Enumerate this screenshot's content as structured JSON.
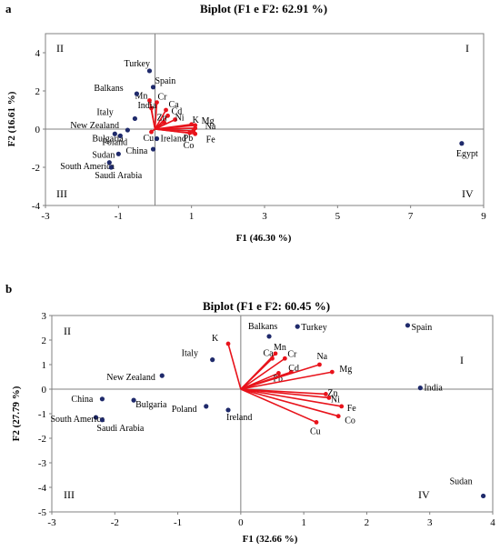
{
  "chart_data": [
    {
      "panel": "a",
      "type": "scatter",
      "title": "Biplot (F1 e F2: 62.91 %)",
      "xlabel": "F1 (46.30 %)",
      "ylabel": "F2 (16.61 %)",
      "xlim": [
        -3,
        9
      ],
      "ylim": [
        -4,
        5
      ],
      "xticks": [
        -3,
        -1,
        1,
        3,
        5,
        7,
        9
      ],
      "yticks": [
        -4,
        -2,
        0,
        2,
        4
      ],
      "quadrants": [
        "I",
        "II",
        "III",
        "IV"
      ],
      "observations": [
        {
          "name": "Turkey",
          "x": -0.15,
          "y": 3.05
        },
        {
          "name": "Spain",
          "x": -0.05,
          "y": 2.2
        },
        {
          "name": "Balkans",
          "x": -0.5,
          "y": 1.85
        },
        {
          "name": "Italy",
          "x": -0.55,
          "y": 0.55
        },
        {
          "name": "New Zealand",
          "x": -0.75,
          "y": -0.05
        },
        {
          "name": "Bulgaria",
          "x": -1.1,
          "y": -0.25
        },
        {
          "name": "Poland",
          "x": -0.95,
          "y": -0.35
        },
        {
          "name": "Sudan",
          "x": -1.0,
          "y": -1.3
        },
        {
          "name": "South America",
          "x": -1.25,
          "y": -1.75
        },
        {
          "name": "Saudi Arabia",
          "x": -1.2,
          "y": -2.0
        },
        {
          "name": "China",
          "x": -0.05,
          "y": -1.05
        },
        {
          "name": "Ireland",
          "x": 0.05,
          "y": -0.5
        },
        {
          "name": "Egypt",
          "x": 8.4,
          "y": -0.75
        }
      ],
      "variables": [
        {
          "name": "Mn",
          "x": -0.15,
          "y": 1.5
        },
        {
          "name": "Cr",
          "x": 0.05,
          "y": 1.4
        },
        {
          "name": "Ca",
          "x": 0.3,
          "y": 1.0
        },
        {
          "name": "India",
          "x": -0.1,
          "y": 1.1
        },
        {
          "name": "Cd",
          "x": 0.35,
          "y": 0.7
        },
        {
          "name": "Zn",
          "x": 0.25,
          "y": 0.35
        },
        {
          "name": "Ni",
          "x": 0.55,
          "y": 0.5
        },
        {
          "name": "K",
          "x": 1.0,
          "y": 0.25
        },
        {
          "name": "Mg",
          "x": 1.1,
          "y": 0.2
        },
        {
          "name": "Na",
          "x": 1.1,
          "y": 0.05
        },
        {
          "name": "Pb",
          "x": 1.05,
          "y": -0.1
        },
        {
          "name": "Fe",
          "x": 1.1,
          "y": -0.25
        },
        {
          "name": "Co",
          "x": 0.95,
          "y": -0.2
        },
        {
          "name": "Cu",
          "x": -0.1,
          "y": -0.15
        }
      ]
    },
    {
      "panel": "b",
      "type": "scatter",
      "title": "Biplot (F1 e F2: 60.45 %)",
      "xlabel": "F1 (32.66 %)",
      "ylabel": "F2 (27.79 %)",
      "xlim": [
        -3,
        4
      ],
      "ylim": [
        -5,
        3
      ],
      "xticks": [
        -3,
        -2,
        -1,
        0,
        1,
        2,
        3,
        4
      ],
      "yticks": [
        -5,
        -4,
        -3,
        -2,
        -1,
        0,
        1,
        2,
        3
      ],
      "quadrants": [
        "I",
        "II",
        "III",
        "IV"
      ],
      "observations": [
        {
          "name": "Balkans",
          "x": 0.45,
          "y": 2.15
        },
        {
          "name": "Turkey",
          "x": 0.9,
          "y": 2.55
        },
        {
          "name": "Spain",
          "x": 2.65,
          "y": 2.6
        },
        {
          "name": "Italy",
          "x": -0.45,
          "y": 1.2
        },
        {
          "name": "New Zealand",
          "x": -1.25,
          "y": 0.55
        },
        {
          "name": "India",
          "x": 2.85,
          "y": 0.05
        },
        {
          "name": "China",
          "x": -2.2,
          "y": -0.4
        },
        {
          "name": "Bulgaria",
          "x": -1.7,
          "y": -0.45
        },
        {
          "name": "Poland",
          "x": -0.55,
          "y": -0.7
        },
        {
          "name": "Ireland",
          "x": -0.2,
          "y": -0.85
        },
        {
          "name": "South America",
          "x": -2.3,
          "y": -1.15
        },
        {
          "name": "Saudi Arabia",
          "x": -2.2,
          "y": -1.25
        },
        {
          "name": "Sudan",
          "x": 3.85,
          "y": -4.35
        }
      ],
      "variables": [
        {
          "name": "K",
          "x": -0.2,
          "y": 1.85
        },
        {
          "name": "Mn",
          "x": 0.55,
          "y": 1.45
        },
        {
          "name": "Ca",
          "x": 0.5,
          "y": 1.25
        },
        {
          "name": "Cr",
          "x": 0.7,
          "y": 1.25
        },
        {
          "name": "Pb",
          "x": 0.6,
          "y": 0.65
        },
        {
          "name": "Cd",
          "x": 0.8,
          "y": 0.7
        },
        {
          "name": "Na",
          "x": 1.25,
          "y": 1.0
        },
        {
          "name": "Mg",
          "x": 1.45,
          "y": 0.7
        },
        {
          "name": "Zn",
          "x": 1.35,
          "y": -0.2
        },
        {
          "name": "Ni",
          "x": 1.4,
          "y": -0.35
        },
        {
          "name": "Fe",
          "x": 1.6,
          "y": -0.7
        },
        {
          "name": "Co",
          "x": 1.55,
          "y": -1.1
        },
        {
          "name": "Cu",
          "x": 1.2,
          "y": -1.35
        }
      ]
    }
  ]
}
